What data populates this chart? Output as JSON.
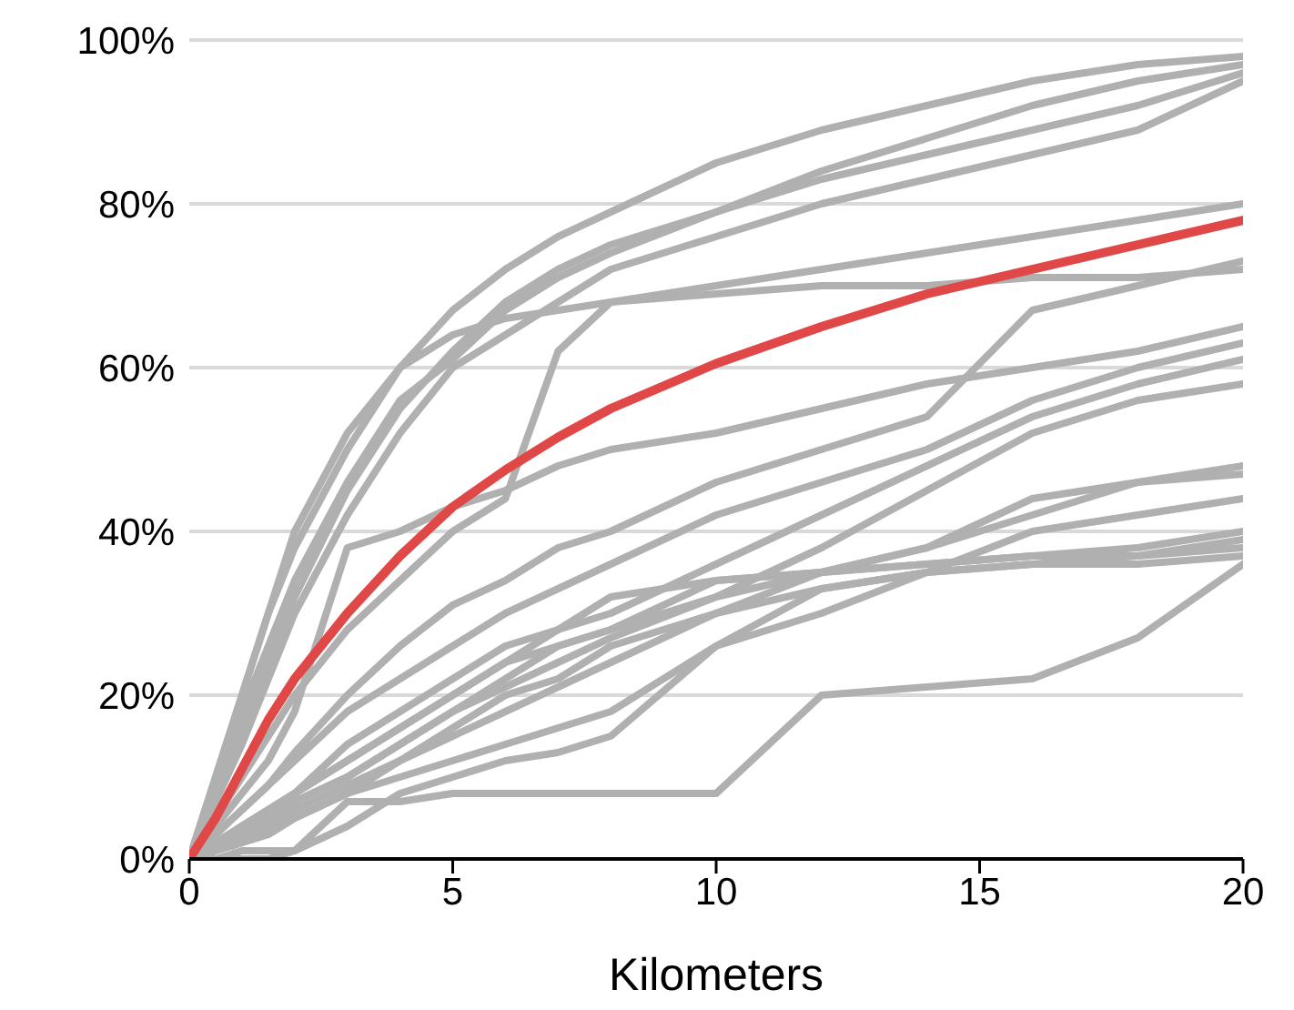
{
  "chart_data": {
    "type": "line",
    "xlabel": "Kilometers",
    "x": [
      0,
      0.5,
      1,
      1.5,
      2,
      3,
      4,
      5,
      6,
      7,
      8,
      10,
      12,
      14,
      16,
      18,
      20
    ],
    "xlim": [
      0,
      20
    ],
    "xticks": [
      0,
      5,
      10,
      15,
      20
    ],
    "ylim": [
      0,
      100
    ],
    "yticks": [
      {
        "value": 0,
        "label": "0%"
      },
      {
        "value": 20,
        "label": "20%"
      },
      {
        "value": 40,
        "label": "40%"
      },
      {
        "value": 60,
        "label": "60%"
      },
      {
        "value": 80,
        "label": "80%"
      },
      {
        "value": 100,
        "label": "100%"
      }
    ],
    "grid": "y",
    "marker": "none",
    "line_style": "solid",
    "legend": false,
    "series": [
      {
        "color": "#b0b0b0",
        "values": [
          0,
          10,
          20,
          30,
          38,
          50,
          60,
          67,
          72,
          76,
          79,
          85,
          89,
          92,
          95,
          97,
          98
        ]
      },
      {
        "color": "#b0b0b0",
        "values": [
          0,
          8,
          16,
          24,
          32,
          45,
          55,
          62,
          68,
          72,
          75,
          79,
          84,
          88,
          92,
          95,
          97
        ]
      },
      {
        "color": "#b0b0b0",
        "values": [
          0,
          9,
          18,
          26,
          34,
          46,
          56,
          61,
          67,
          71,
          74,
          79,
          83,
          86,
          89,
          92,
          96
        ]
      },
      {
        "color": "#b0b0b0",
        "values": [
          0,
          7,
          14,
          22,
          30,
          42,
          52,
          60,
          64,
          68,
          72,
          76,
          80,
          83,
          86,
          89,
          95
        ]
      },
      {
        "color": "#b0b0b0",
        "values": [
          0,
          10,
          20,
          30,
          40,
          52,
          60,
          64,
          66,
          67,
          68,
          69,
          70,
          70,
          71,
          71,
          72
        ]
      },
      {
        "color": "#b0b0b0",
        "values": [
          0,
          5,
          10,
          15,
          20,
          28,
          34,
          40,
          44,
          62,
          68,
          70,
          72,
          74,
          76,
          78,
          80
        ]
      },
      {
        "color": "#b0b0b0",
        "values": [
          0,
          3,
          6,
          9,
          13,
          20,
          26,
          31,
          34,
          38,
          40,
          46,
          50,
          54,
          67,
          70,
          73
        ]
      },
      {
        "color": "#b0b0b0",
        "values": [
          0,
          4,
          8,
          12,
          18,
          38,
          40,
          43,
          45,
          48,
          50,
          52,
          55,
          58,
          60,
          62,
          65
        ]
      },
      {
        "color": "#b0b0b0",
        "values": [
          0,
          3,
          6,
          9,
          12,
          18,
          22,
          26,
          30,
          33,
          36,
          42,
          46,
          50,
          56,
          60,
          63
        ]
      },
      {
        "color": "#b0b0b0",
        "values": [
          0,
          2,
          4,
          6,
          8,
          14,
          18,
          22,
          26,
          28,
          30,
          36,
          42,
          48,
          54,
          58,
          61
        ]
      },
      {
        "color": "#b0b0b0",
        "values": [
          0,
          2,
          3,
          5,
          7,
          10,
          14,
          18,
          21,
          24,
          27,
          32,
          38,
          45,
          52,
          56,
          58
        ]
      },
      {
        "color": "#b0b0b0",
        "values": [
          0,
          1,
          2,
          4,
          6,
          9,
          12,
          15,
          18,
          21,
          24,
          30,
          35,
          38,
          42,
          46,
          48
        ]
      },
      {
        "color": "#b0b0b0",
        "values": [
          0,
          2,
          4,
          6,
          8,
          12,
          16,
          20,
          24,
          26,
          28,
          32,
          35,
          38,
          44,
          46,
          47
        ]
      },
      {
        "color": "#b0b0b0",
        "values": [
          0,
          1,
          2,
          3,
          5,
          8,
          10,
          12,
          14,
          16,
          18,
          26,
          30,
          35,
          40,
          42,
          44
        ]
      },
      {
        "color": "#b0b0b0",
        "values": [
          0,
          1,
          3,
          5,
          7,
          10,
          14,
          18,
          22,
          26,
          28,
          34,
          35,
          36,
          37,
          38,
          40
        ]
      },
      {
        "color": "#b0b0b0",
        "values": [
          0,
          2,
          4,
          6,
          8,
          12,
          16,
          20,
          24,
          28,
          32,
          34,
          35,
          36,
          37,
          37,
          38
        ]
      },
      {
        "color": "#b0b0b0",
        "values": [
          0,
          1,
          2,
          3,
          5,
          8,
          12,
          16,
          20,
          22,
          26,
          30,
          33,
          35,
          36,
          36,
          37
        ]
      },
      {
        "color": "#b0b0b0",
        "values": [
          0,
          0,
          1,
          1,
          1,
          7,
          7,
          8,
          8,
          8,
          8,
          8,
          20,
          21,
          22,
          27,
          36
        ]
      },
      {
        "color": "#b0b0b0",
        "values": [
          0,
          0,
          0,
          0,
          1,
          4,
          8,
          10,
          12,
          13,
          15,
          26,
          33,
          35,
          36,
          37,
          39
        ]
      },
      {
        "color": "#e04848",
        "values": [
          0,
          5,
          11,
          17,
          22,
          30,
          37,
          43,
          47.5,
          51.5,
          55,
          60.5,
          65,
          69,
          72,
          75,
          78
        ]
      }
    ]
  }
}
